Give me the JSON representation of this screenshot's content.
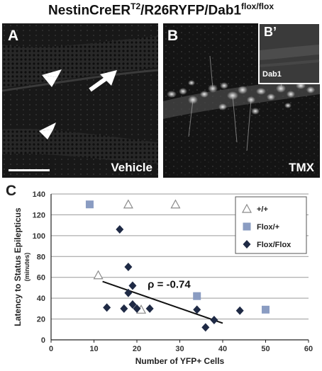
{
  "figure": {
    "title_main": "NestinCreER",
    "title_sup1": "T2",
    "title_mid": "/R26RYFP/Dab1",
    "title_sup2": "flox/flox"
  },
  "panels": {
    "a": {
      "letter": "A",
      "condition": "Vehicle"
    },
    "b": {
      "letter": "B",
      "condition": "TMX",
      "inset_letter": "B’",
      "inset_label": "Dab1"
    },
    "c": {
      "letter": "C"
    }
  },
  "colors": {
    "wt_marker": "#ffffff",
    "flox_het_marker": "#8a9cc2",
    "flox_flox_marker": "#1f2a45",
    "micrograph_bg": "#161616"
  },
  "chart_data": {
    "type": "scatter",
    "xlabel": "Number of YFP+ Cells",
    "ylabel": "Latency to Status Epilepticus",
    "ylabel_unit": "(minutes)",
    "xlim": [
      0,
      60
    ],
    "ylim": [
      0,
      140
    ],
    "xticks": [
      0,
      10,
      20,
      30,
      40,
      50,
      60
    ],
    "yticks": [
      0,
      20,
      40,
      60,
      80,
      100,
      120,
      140
    ],
    "grid": true,
    "legend_position": "top-right",
    "annotation": "ρ = -0.74",
    "series": [
      {
        "name": "+/+",
        "marker": "triangle",
        "points": [
          [
            11,
            62
          ],
          [
            18,
            130
          ],
          [
            21,
            29
          ],
          [
            29,
            130
          ]
        ]
      },
      {
        "name": "Flox/+",
        "marker": "square",
        "points": [
          [
            9,
            130
          ],
          [
            34,
            42
          ],
          [
            50,
            29
          ]
        ]
      },
      {
        "name": "Flox/Flox",
        "marker": "diamond",
        "points": [
          [
            13,
            31
          ],
          [
            16,
            106
          ],
          [
            17,
            30
          ],
          [
            18,
            70
          ],
          [
            18,
            45
          ],
          [
            19,
            52
          ],
          [
            19,
            34
          ],
          [
            20,
            30
          ],
          [
            23,
            30
          ],
          [
            34,
            29
          ],
          [
            36,
            12
          ],
          [
            38,
            19
          ],
          [
            44,
            28
          ]
        ]
      }
    ],
    "trendline": {
      "x": [
        12,
        40
      ],
      "y": [
        56,
        16
      ]
    }
  }
}
